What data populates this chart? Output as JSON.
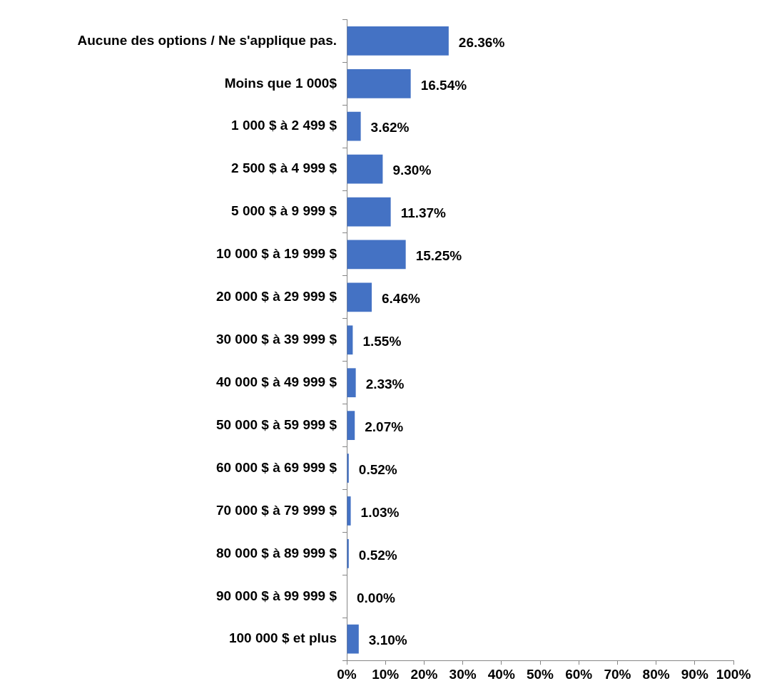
{
  "chart_data": {
    "type": "bar",
    "orientation": "horizontal",
    "categories": [
      "Aucune des options / Ne s'applique pas.",
      "Moins que 1 000$",
      "1 000 $ à 2 499 $",
      "2 500 $ à 4 999 $",
      "5 000 $ à 9 999 $",
      "10 000 $ à 19 999 $",
      "20 000 $ à 29 999 $",
      "30 000 $ à 39 999 $",
      "40 000 $ à 49 999 $",
      "50 000 $ à 59 999 $",
      "60 000 $ à 69 999 $",
      "70 000 $ à 79 999 $",
      "80 000 $ à 89 999 $",
      "90 000 $ à 99 999 $",
      "100 000 $ et plus"
    ],
    "values": [
      26.36,
      16.54,
      3.62,
      9.3,
      11.37,
      15.25,
      6.46,
      1.55,
      2.33,
      2.07,
      0.52,
      1.03,
      0.52,
      0.0,
      3.1
    ],
    "value_labels": [
      "26.36%",
      "16.54%",
      "3.62%",
      "9.30%",
      "11.37%",
      "15.25%",
      "6.46%",
      "1.55%",
      "2.33%",
      "2.07%",
      "0.52%",
      "1.03%",
      "0.52%",
      "0.00%",
      "3.10%"
    ],
    "color": "#4472c4",
    "xlim": [
      0,
      100
    ],
    "xticks": [
      {
        "value": 0,
        "label": "0%"
      },
      {
        "value": 10,
        "label": "10%"
      },
      {
        "value": 20,
        "label": "20%"
      },
      {
        "value": 30,
        "label": "30%"
      },
      {
        "value": 40,
        "label": "40%"
      },
      {
        "value": 50,
        "label": "50%"
      },
      {
        "value": 60,
        "label": "60%"
      },
      {
        "value": 70,
        "label": "70%"
      },
      {
        "value": 80,
        "label": "80%"
      },
      {
        "value": 90,
        "label": "90%"
      },
      {
        "value": 100,
        "label": "100%"
      }
    ]
  }
}
